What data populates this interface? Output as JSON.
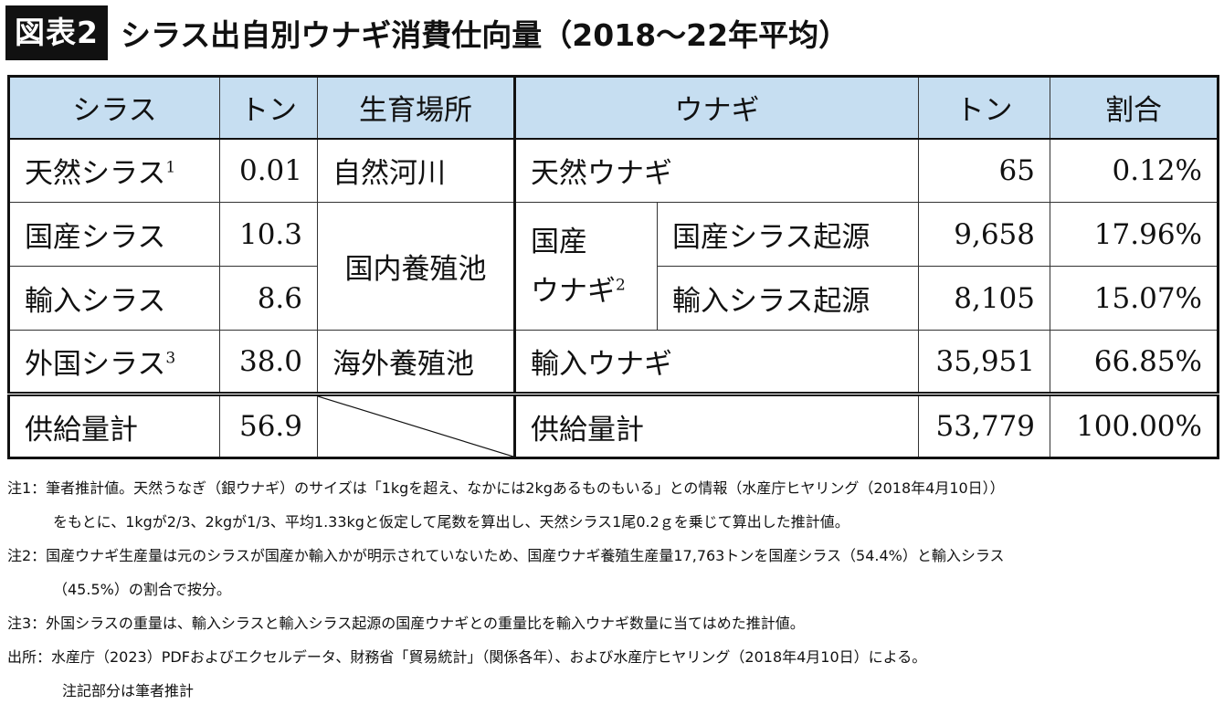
{
  "title": {
    "badge": "図表2",
    "text": "シラス出自別ウナギ消費仕向量（2018〜22年平均）"
  },
  "table": {
    "headers": {
      "shirasu": "シラス",
      "ton1": "トン",
      "location": "生育場所",
      "unagi": "ウナギ",
      "ton2": "トン",
      "ratio": "割合"
    },
    "rows": {
      "r1": {
        "shirasu": "天然シラス",
        "shirasu_sup": "1",
        "ton": "0.01",
        "location": "自然河川",
        "unagi": "天然ウナギ",
        "unagi_ton": "65",
        "ratio": "0.12%"
      },
      "r2": {
        "shirasu": "国産シラス",
        "ton": "10.3",
        "location": "国内養殖池",
        "unagi_group": "国産",
        "unagi_group2": "ウナギ",
        "unagi_group_sup": "2",
        "unagi_sub": "国産シラス起源",
        "unagi_ton": "9,658",
        "ratio": "17.96%"
      },
      "r3": {
        "shirasu": "輸入シラス",
        "ton": "8.6",
        "unagi_sub": "輸入シラス起源",
        "unagi_ton": "8,105",
        "ratio": "15.07%"
      },
      "r4": {
        "shirasu": "外国シラス",
        "shirasu_sup": "3",
        "ton": "38.0",
        "location": "海外養殖池",
        "unagi": "輸入ウナギ",
        "unagi_ton": "35,951",
        "ratio": "66.85%"
      },
      "total": {
        "shirasu": "供給量計",
        "ton": "56.9",
        "unagi": "供給量計",
        "unagi_ton": "53,779",
        "ratio": "100.00%"
      }
    }
  },
  "notes": {
    "n1_a": "注1：筆者推計値。天然うなぎ（銀ウナギ）のサイズは「1kgを超え、なかには2kgあるものもいる」との情報（水産庁ヒヤリング（2018年4月10日））",
    "n1_b": "をもとに、1kgが2/3、2kgが1/3、平均1.33kgと仮定して尾数を算出し、天然シラス1尾0.2ｇを乗じて算出した推計値。",
    "n2_a": "注2：国産ウナギ生産量は元のシラスが国産か輸入かが明示されていないため、国産ウナギ養殖生産量17,763トンを国産シラス（54.4%）と輸入シラス",
    "n2_b": "（45.5%）の割合で按分。",
    "n3": "注3：外国シラスの重量は、輸入シラスと輸入シラス起源の国産ウナギとの重量比を輸入ウナギ数量に当てはめた推計値。",
    "source_a": "出所：水産庁（2023）PDFおよびエクセルデータ、財務省「貿易統計」（関係各年）、および水産庁ヒヤリング（2018年4月10日）による。",
    "source_b": "注記部分は筆者推計"
  },
  "colors": {
    "header_bg": "#c6def1",
    "badge_bg": "#111111",
    "border": "#111111"
  }
}
